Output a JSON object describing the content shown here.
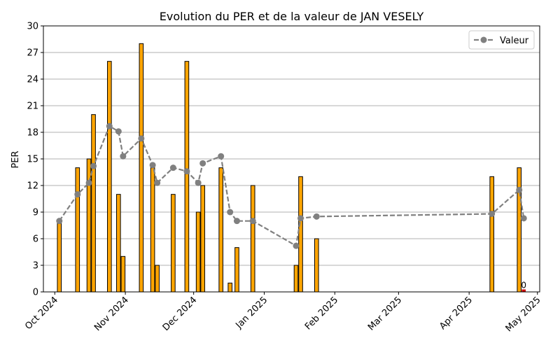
{
  "chart_data": {
    "type": "bar",
    "title": "Evolution du PER et de la valeur de JAN VESELY",
    "xlabel": "",
    "ylabel": "PER",
    "ylim": [
      0,
      30
    ],
    "yticks": [
      0,
      3,
      6,
      9,
      12,
      15,
      18,
      21,
      24,
      27,
      30
    ],
    "xlim": [
      "2024-09-26",
      "2025-05-02"
    ],
    "xticks": [
      {
        "date": "2024-10-01",
        "label": "Oct 2024"
      },
      {
        "date": "2024-11-01",
        "label": "Nov 2024"
      },
      {
        "date": "2024-12-01",
        "label": "Dec 2024"
      },
      {
        "date": "2025-01-01",
        "label": "Jan 2025"
      },
      {
        "date": "2025-02-01",
        "label": "Feb 2025"
      },
      {
        "date": "2025-03-01",
        "label": "Mar 2025"
      },
      {
        "date": "2025-04-01",
        "label": "Apr 2025"
      },
      {
        "date": "2025-05-01",
        "label": "May 2025"
      }
    ],
    "grid": "y",
    "legend_position": "top-right",
    "bar_color": "#FFA500",
    "bar_color_zero": "#CC0000",
    "line_color": "#808080",
    "bars": [
      {
        "date": "2024-10-03",
        "value": 8
      },
      {
        "date": "2024-10-11",
        "value": 14
      },
      {
        "date": "2024-10-16",
        "value": 15
      },
      {
        "date": "2024-10-18",
        "value": 20
      },
      {
        "date": "2024-10-25",
        "value": 26
      },
      {
        "date": "2024-10-29",
        "value": 11
      },
      {
        "date": "2024-10-31",
        "value": 4
      },
      {
        "date": "2024-11-08",
        "value": 28
      },
      {
        "date": "2024-11-13",
        "value": 14
      },
      {
        "date": "2024-11-15",
        "value": 3
      },
      {
        "date": "2024-11-22",
        "value": 11
      },
      {
        "date": "2024-11-28",
        "value": 26
      },
      {
        "date": "2024-12-03",
        "value": 9
      },
      {
        "date": "2024-12-05",
        "value": 12
      },
      {
        "date": "2024-12-13",
        "value": 14
      },
      {
        "date": "2024-12-17",
        "value": 1
      },
      {
        "date": "2024-12-20",
        "value": 5
      },
      {
        "date": "2024-12-27",
        "value": 12
      },
      {
        "date": "2025-01-15",
        "value": 3
      },
      {
        "date": "2025-01-17",
        "value": 13
      },
      {
        "date": "2025-01-24",
        "value": 6
      },
      {
        "date": "2025-04-11",
        "value": 13
      },
      {
        "date": "2025-04-23",
        "value": 14
      },
      {
        "date": "2025-04-25",
        "value": 0,
        "label": "0"
      }
    ],
    "series": [
      {
        "name": "Valeur",
        "points": [
          {
            "date": "2024-10-03",
            "value": 8.0
          },
          {
            "date": "2024-10-11",
            "value": 11.0
          },
          {
            "date": "2024-10-16",
            "value": 12.3
          },
          {
            "date": "2024-10-18",
            "value": 14.2
          },
          {
            "date": "2024-10-25",
            "value": 18.7
          },
          {
            "date": "2024-10-29",
            "value": 18.1
          },
          {
            "date": "2024-10-31",
            "value": 15.3
          },
          {
            "date": "2024-11-08",
            "value": 17.3
          },
          {
            "date": "2024-11-13",
            "value": 14.3
          },
          {
            "date": "2024-11-15",
            "value": 12.3
          },
          {
            "date": "2024-11-22",
            "value": 14.0
          },
          {
            "date": "2024-11-28",
            "value": 13.6
          },
          {
            "date": "2024-12-03",
            "value": 12.3
          },
          {
            "date": "2024-12-05",
            "value": 14.5
          },
          {
            "date": "2024-12-13",
            "value": 15.3
          },
          {
            "date": "2024-12-17",
            "value": 9.0
          },
          {
            "date": "2024-12-20",
            "value": 8.0
          },
          {
            "date": "2024-12-27",
            "value": 8.0
          },
          {
            "date": "2025-01-15",
            "value": 5.2
          },
          {
            "date": "2025-01-17",
            "value": 8.3
          },
          {
            "date": "2025-01-24",
            "value": 8.5
          },
          {
            "date": "2025-04-11",
            "value": 8.8
          },
          {
            "date": "2025-04-23",
            "value": 11.5
          },
          {
            "date": "2025-04-25",
            "value": 8.3
          }
        ]
      }
    ]
  }
}
